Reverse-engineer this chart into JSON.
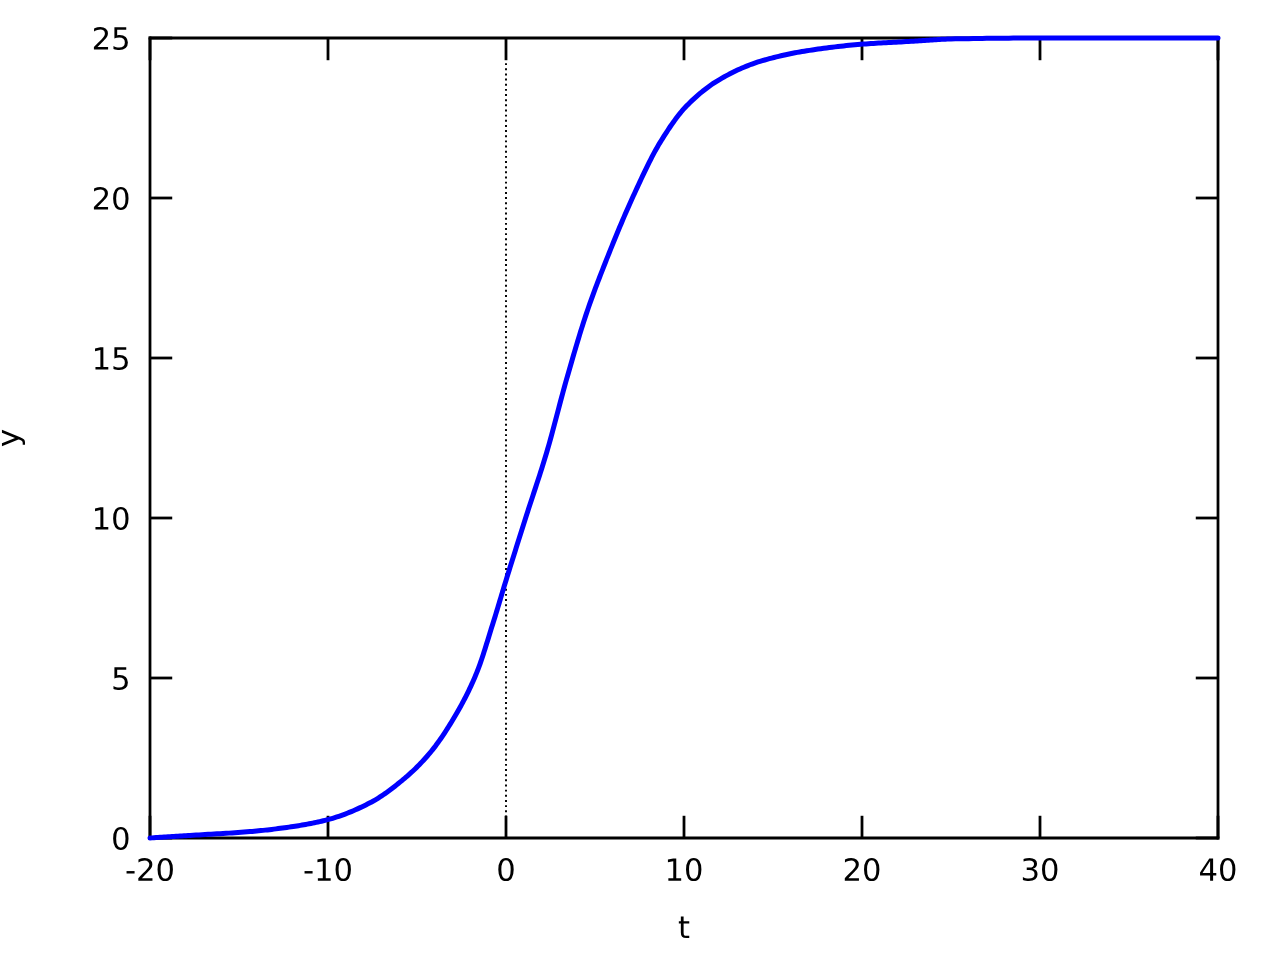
{
  "chart_data": {
    "type": "line",
    "xlabel": "t",
    "ylabel": "y",
    "x": [
      -20,
      -17.75,
      -14.38,
      -11.95,
      -9.97,
      -7.64,
      -5.77,
      -4.27,
      -2.77,
      -1.65,
      -0.71,
      0,
      1.16,
      2.28,
      3.4,
      4.53,
      5.65,
      7.15,
      8.65,
      10.15,
      12.02,
      14.27,
      16.89,
      20.08,
      22.9,
      25,
      30,
      40
    ],
    "series": [
      {
        "color": "#0000ff",
        "values": [
          0,
          0.08,
          0.2,
          0.36,
          0.58,
          1.1,
          1.83,
          2.66,
          3.9,
          5.16,
          6.75,
          8.05,
          10.1,
          12.04,
          14.33,
          16.41,
          18.08,
          20.06,
          21.73,
          22.88,
          23.71,
          24.27,
          24.6,
          24.81,
          24.9,
          24.97,
          25,
          25
        ]
      }
    ],
    "xlim": [
      -20,
      40
    ],
    "ylim": [
      0,
      25
    ],
    "xticks": [
      -20,
      -10,
      0,
      10,
      20,
      30,
      40
    ],
    "yticks": [
      0,
      5,
      10,
      15,
      20,
      25
    ],
    "ref_lines": [
      {
        "axis": "x",
        "value": 0,
        "color": "#000000",
        "line_style": "dotted"
      }
    ],
    "line_style": "solid"
  }
}
